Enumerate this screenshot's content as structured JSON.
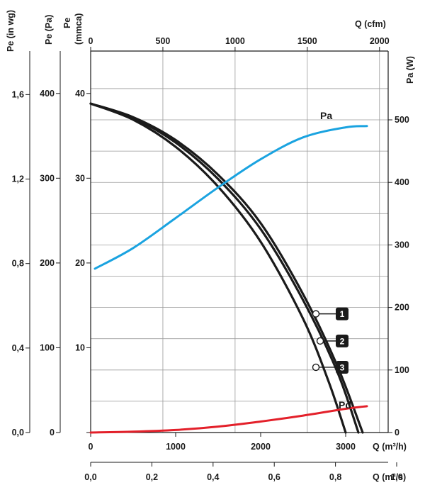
{
  "chart_data": {
    "type": "line",
    "axes": {
      "x_bottom": {
        "label": "Q (m³/h)",
        "range": [
          0,
          3500
        ],
        "ticks": [
          0,
          1000,
          2000,
          3000
        ],
        "tick_labels": [
          "0",
          "1000",
          "2000",
          "3000"
        ]
      },
      "x_bottom2": {
        "label": "Q (m³/s)",
        "range": [
          0,
          0.9722
        ],
        "ticks": [
          0.0,
          0.2,
          0.4,
          0.6,
          0.8,
          1.0
        ],
        "tick_labels": [
          "0,0",
          "0,2",
          "0,4",
          "0,6",
          "0,8",
          "1,0"
        ]
      },
      "x_top": {
        "label": "Q (cfm)",
        "range": [
          0,
          2060
        ],
        "ticks": [
          0,
          500,
          1000,
          1500,
          2000
        ],
        "tick_labels": [
          "0",
          "500",
          "1000",
          "1500",
          "2000"
        ]
      },
      "y_pa": {
        "label": "Pe (Pa)",
        "range": [
          0,
          450
        ],
        "ticks": [
          0,
          100,
          200,
          300,
          400
        ],
        "tick_labels": [
          "0",
          "100",
          "200",
          "300",
          "400"
        ]
      },
      "y_mmca": {
        "label_line1": "Pe",
        "label_line2": "(mmca)",
        "range": [
          0,
          45
        ],
        "ticks": [
          0,
          10,
          20,
          30,
          40
        ],
        "tick_labels": [
          "0",
          "10",
          "20",
          "30",
          "40"
        ]
      },
      "y_inwg": {
        "label": "Pe (in wg)",
        "range": [
          0,
          1.806
        ],
        "ticks": [
          0.0,
          0.4,
          0.8,
          1.2,
          1.6
        ],
        "tick_labels": [
          "0,0",
          "0,4",
          "0,8",
          "1,2",
          "1,6"
        ]
      },
      "y_right": {
        "label": "Pa (W)",
        "range": [
          0,
          610
        ],
        "ticks": [
          0,
          100,
          200,
          300,
          400,
          500
        ],
        "tick_labels": [
          "0",
          "100",
          "200",
          "300",
          "400",
          "500"
        ]
      }
    },
    "grid": true,
    "series": [
      {
        "name": "1",
        "axis": "y_pa",
        "color": "#1a1a1a",
        "x": [
          0,
          500,
          1000,
          1500,
          2000,
          2500,
          2900,
          3200
        ],
        "y": [
          388,
          372,
          345,
          304,
          247,
          163,
          79,
          0
        ]
      },
      {
        "name": "2",
        "axis": "y_pa",
        "color": "#1a1a1a",
        "x": [
          0,
          500,
          1000,
          1500,
          2000,
          2500,
          2900,
          3150
        ],
        "y": [
          388,
          371,
          342,
          299,
          240,
          156,
          72,
          0
        ]
      },
      {
        "name": "3",
        "axis": "y_pa",
        "color": "#1a1a1a",
        "x": [
          0,
          500,
          1000,
          1500,
          2000,
          2500,
          2800,
          3000
        ],
        "y": [
          388,
          369,
          337,
          290,
          225,
          134,
          60,
          0
        ]
      },
      {
        "name": "Pa",
        "axis": "y_right",
        "color": "#1aa3e0",
        "x": [
          50,
          500,
          1000,
          1500,
          2000,
          2500,
          3000,
          3250
        ],
        "y": [
          262,
          295,
          343,
          392,
          437,
          472,
          488,
          490
        ]
      },
      {
        "name": "Pd",
        "axis": "y_pa",
        "color": "#e3202a",
        "x": [
          0,
          500,
          1000,
          1500,
          2000,
          2500,
          3000,
          3250
        ],
        "y": [
          0,
          1,
          3,
          7,
          13,
          20,
          28,
          31
        ]
      }
    ],
    "markers": [
      {
        "label": "1",
        "x": 2650,
        "y": 140
      },
      {
        "label": "2",
        "x": 2700,
        "y": 108
      },
      {
        "label": "3",
        "x": 2650,
        "y": 77
      }
    ]
  }
}
